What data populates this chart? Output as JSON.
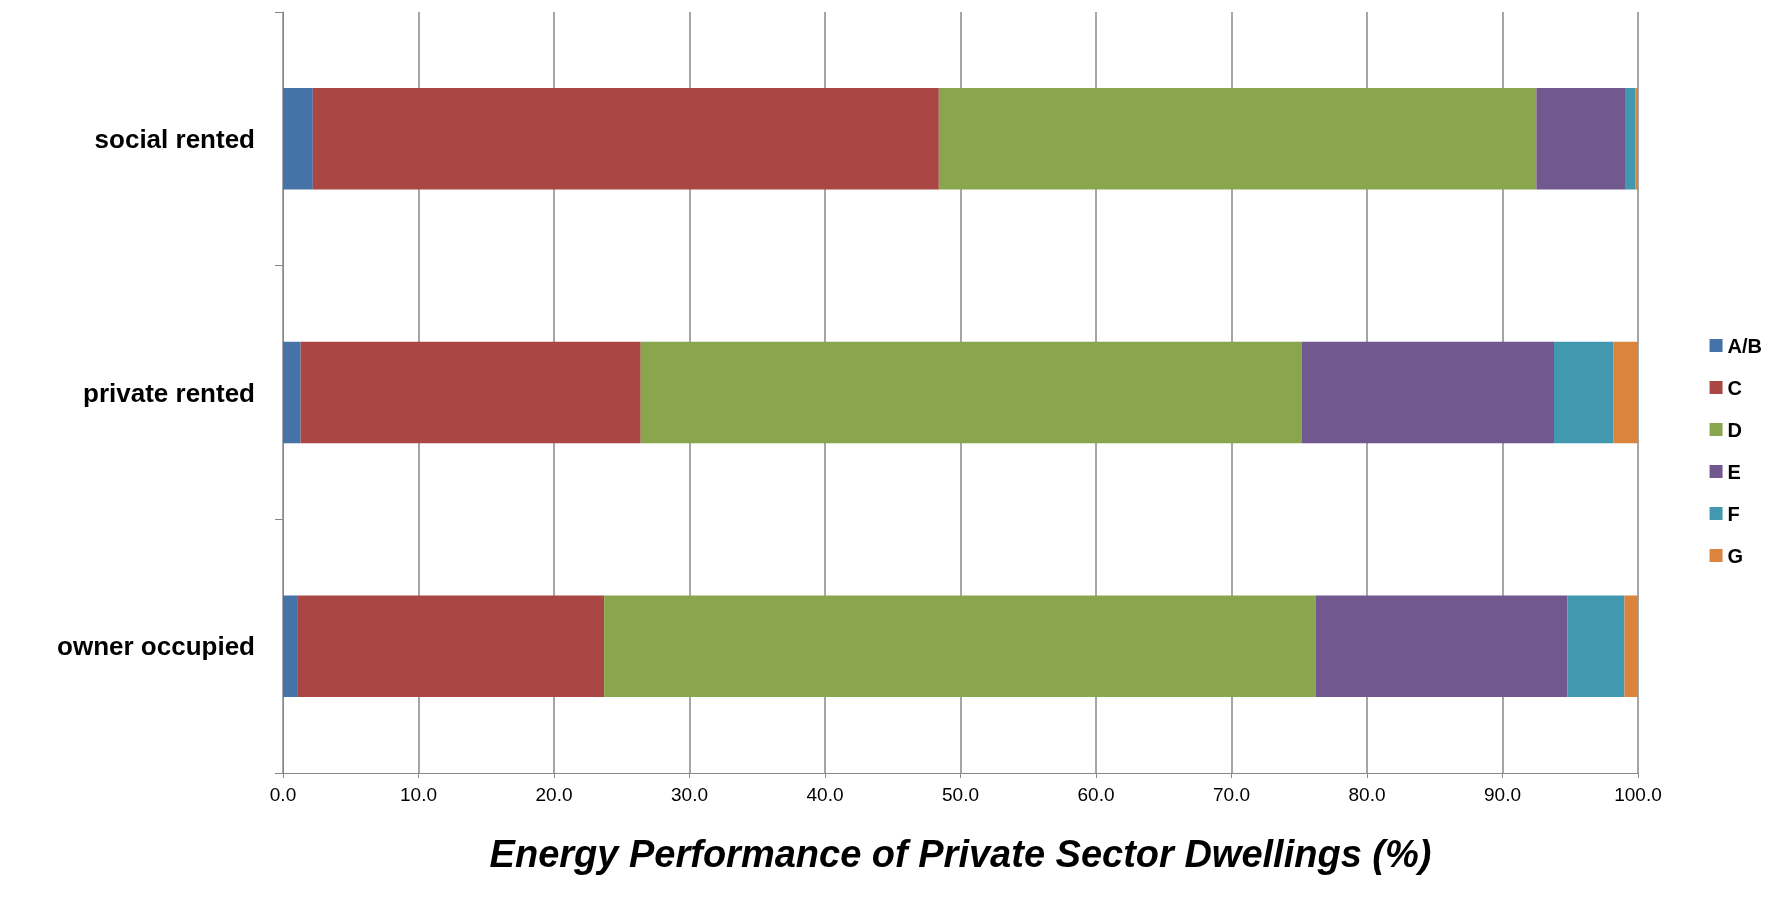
{
  "chart_data": {
    "type": "bar",
    "orientation": "horizontal",
    "stacked": true,
    "xlabel": "Energy Performance of Private Sector Dwellings (%)",
    "categories": [
      "social rented",
      "private rented",
      "owner occupied"
    ],
    "series": [
      {
        "name": "A/B",
        "color": "#4572a7",
        "values": [
          2.2,
          1.3,
          1.1
        ]
      },
      {
        "name": "C",
        "color": "#aa4643",
        "values": [
          46.2,
          25.1,
          22.6
        ]
      },
      {
        "name": "D",
        "color": "#89a54e",
        "values": [
          44.1,
          48.8,
          52.5
        ]
      },
      {
        "name": "E",
        "color": "#71588f",
        "values": [
          6.6,
          18.6,
          18.6
        ]
      },
      {
        "name": "F",
        "color": "#4198af",
        "values": [
          0.7,
          4.4,
          4.2
        ]
      },
      {
        "name": "G",
        "color": "#db843d",
        "values": [
          0.2,
          1.8,
          1.0
        ]
      }
    ],
    "xlim": [
      0,
      100
    ],
    "xticks": [
      {
        "value": 0,
        "label": "0.0"
      },
      {
        "value": 10,
        "label": "10.0"
      },
      {
        "value": 20,
        "label": "20.0"
      },
      {
        "value": 30,
        "label": "30.0"
      },
      {
        "value": 40,
        "label": "40.0"
      },
      {
        "value": 50,
        "label": "50.0"
      },
      {
        "value": 60,
        "label": "60.0"
      },
      {
        "value": 70,
        "label": "70.0"
      },
      {
        "value": 80,
        "label": "80.0"
      },
      {
        "value": 90,
        "label": "90.0"
      },
      {
        "value": 100,
        "label": "100.0"
      }
    ],
    "grid": "x",
    "legend": "right"
  }
}
